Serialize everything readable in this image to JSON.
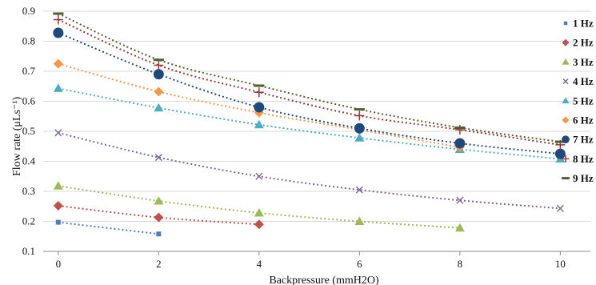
{
  "chart_data": {
    "type": "scatter",
    "title": "",
    "xlabel": "Backpressure (mmH2O)",
    "ylabel": "Flow rate (μLs⁻¹)",
    "xlim": [
      -0.3,
      10.6
    ],
    "ylim": [
      0.1,
      0.9
    ],
    "xticks": [
      0,
      2,
      4,
      6,
      8,
      10
    ],
    "yticks": [
      0.1,
      0.2,
      0.3,
      0.4,
      0.5,
      0.6,
      0.7,
      0.8,
      0.9
    ],
    "grid": "horizontal",
    "legend_position": "right",
    "series": [
      {
        "name": "1 Hz",
        "color": "#4a7ebf",
        "marker": "square",
        "x": [
          0,
          2
        ],
        "y": [
          0.197,
          0.158
        ]
      },
      {
        "name": "2 Hz",
        "color": "#c0504d",
        "marker": "diamond",
        "x": [
          0,
          2,
          4
        ],
        "y": [
          0.252,
          0.213,
          0.19
        ]
      },
      {
        "name": "3 Hz",
        "color": "#9bbb59",
        "marker": "triangle",
        "x": [
          0,
          2,
          4,
          6,
          8
        ],
        "y": [
          0.318,
          0.268,
          0.228,
          0.2,
          0.178
        ]
      },
      {
        "name": "4 Hz",
        "color": "#8064a2",
        "marker": "x",
        "x": [
          0,
          2,
          4,
          6,
          8,
          10
        ],
        "y": [
          0.495,
          0.413,
          0.35,
          0.305,
          0.27,
          0.243
        ]
      },
      {
        "name": "5 Hz",
        "color": "#4bacc6",
        "marker": "triangle",
        "x": [
          0,
          2,
          4,
          6,
          8,
          10
        ],
        "y": [
          0.643,
          0.578,
          0.522,
          0.478,
          0.44,
          0.408
        ]
      },
      {
        "name": "6 Hz",
        "color": "#f79646",
        "marker": "diamond",
        "x": [
          0,
          2,
          4,
          6,
          8
        ],
        "y": [
          0.725,
          0.632,
          0.562,
          0.505,
          0.447
        ]
      },
      {
        "name": "7 Hz",
        "color": "#1f497d",
        "marker": "circle",
        "x": [
          0,
          2,
          4,
          6,
          8,
          10
        ],
        "y": [
          0.828,
          0.69,
          0.58,
          0.51,
          0.46,
          0.425
        ]
      },
      {
        "name": "8 Hz",
        "color": "#953735",
        "marker": "plus",
        "x": [
          0,
          2,
          4,
          6,
          8,
          10
        ],
        "y": [
          0.872,
          0.72,
          0.63,
          0.552,
          0.505,
          0.455
        ]
      },
      {
        "name": "9 Hz",
        "color": "#4f6228",
        "marker": "dash",
        "x": [
          0,
          2,
          4,
          6,
          8,
          10
        ],
        "y": [
          0.892,
          0.738,
          0.652,
          0.573,
          0.512,
          0.465
        ]
      }
    ]
  }
}
